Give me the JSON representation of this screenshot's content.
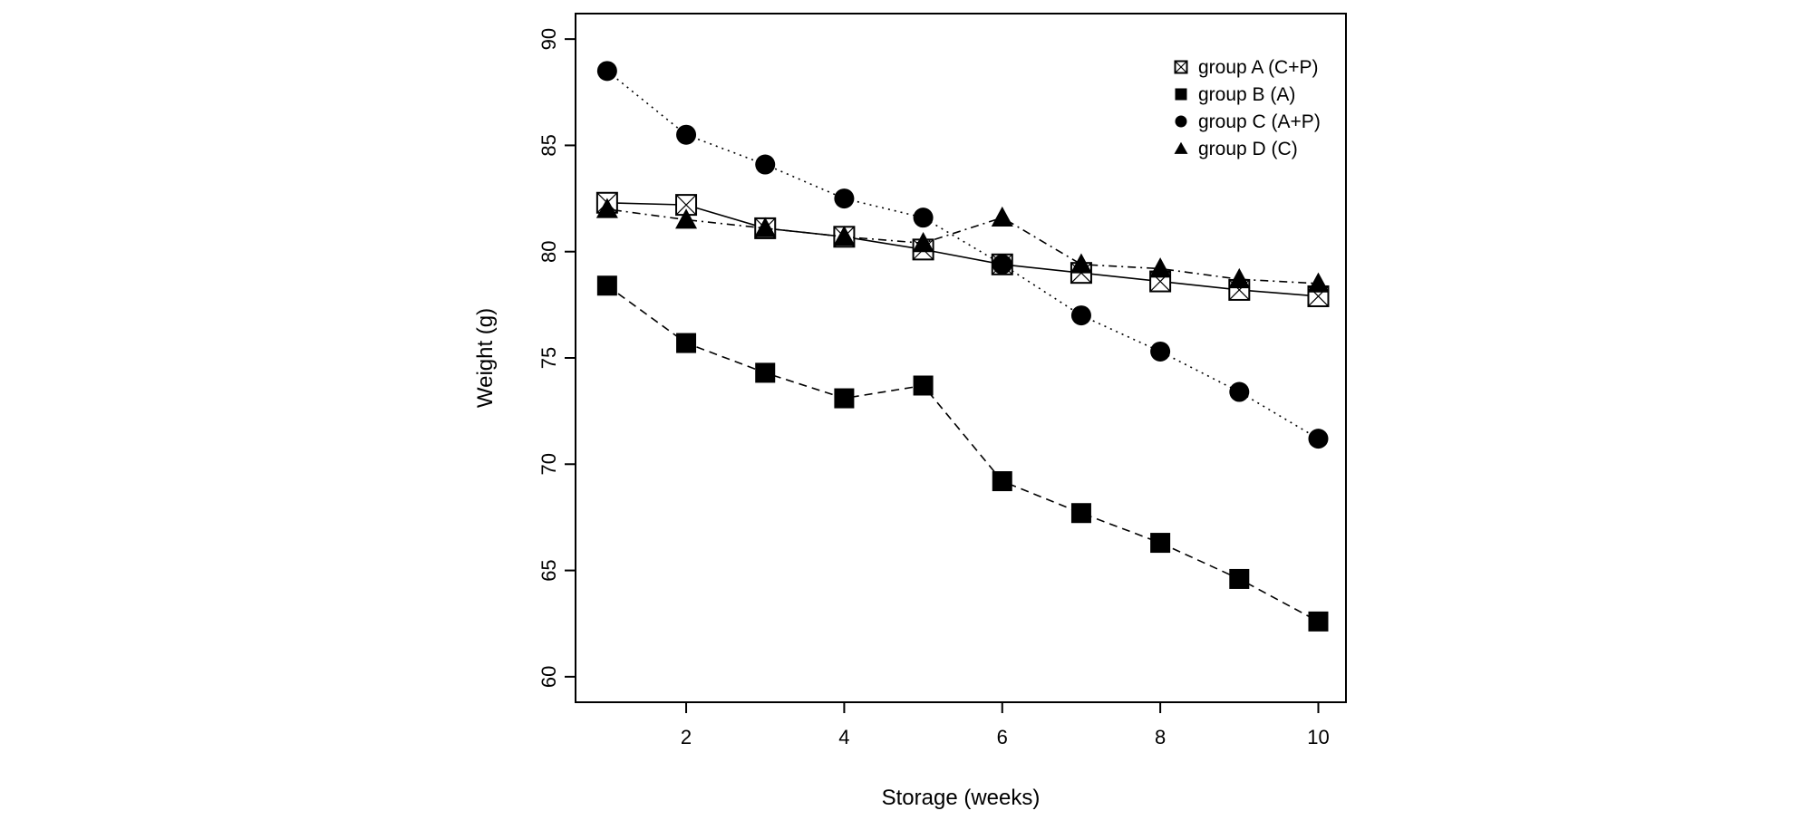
{
  "chart_data": {
    "type": "line",
    "title": "",
    "xlabel": "Storage (weeks)",
    "ylabel": "Weight (g)",
    "xlim": [
      0.6,
      10.35
    ],
    "ylim": [
      58.8,
      91.2
    ],
    "xticks": [
      2,
      4,
      6,
      8,
      10
    ],
    "yticks": [
      60,
      65,
      70,
      75,
      80,
      85,
      90
    ],
    "grid": false,
    "legend_position": "top-right",
    "x": [
      1,
      2,
      3,
      4,
      5,
      6,
      7,
      8,
      9,
      10
    ],
    "series": [
      {
        "name": "group A (C+P)",
        "marker": "square-open-x",
        "line": "solid",
        "values": [
          82.3,
          82.2,
          81.1,
          80.7,
          80.1,
          79.4,
          79.0,
          78.6,
          78.2,
          77.9
        ]
      },
      {
        "name": "group B (A)",
        "marker": "square-filled",
        "line": "dashed",
        "values": [
          78.4,
          75.7,
          74.3,
          73.1,
          73.7,
          69.2,
          67.7,
          66.3,
          64.6,
          62.6
        ]
      },
      {
        "name": "group C (A+P)",
        "marker": "circle-filled",
        "line": "dotted",
        "values": [
          88.5,
          85.5,
          84.1,
          82.5,
          81.6,
          79.4,
          77.0,
          75.3,
          73.4,
          71.2
        ]
      },
      {
        "name": "group D (C)",
        "marker": "triangle-filled",
        "line": "dotdash",
        "values": [
          82.0,
          81.5,
          81.1,
          80.7,
          80.4,
          81.6,
          79.4,
          79.2,
          78.7,
          78.5
        ]
      }
    ]
  }
}
